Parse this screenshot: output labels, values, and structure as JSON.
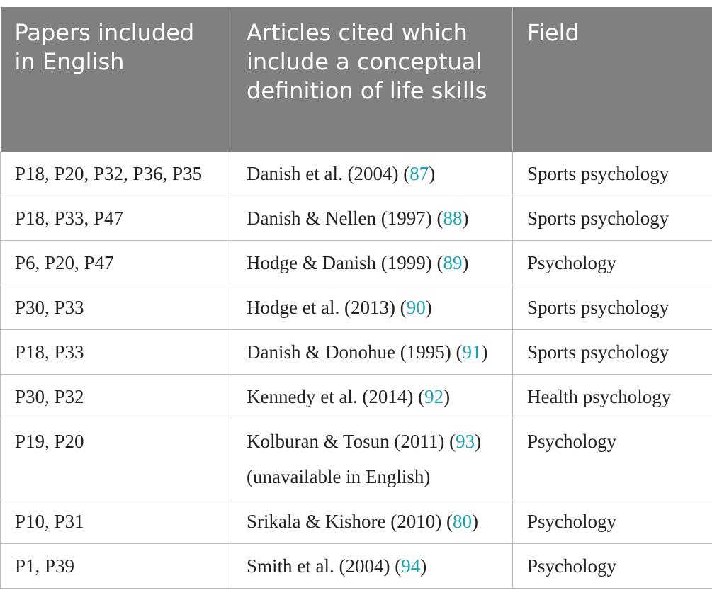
{
  "table": {
    "headers": [
      "Papers included in English",
      "Articles cited which include a conceptual definition of life skills",
      "Field"
    ],
    "rows": [
      {
        "papers": "P18, P20, P32, P36, P35",
        "article": "Danish et al. (2004) (",
        "ref": "87",
        "close": ")",
        "note": "",
        "field": "Sports psychology"
      },
      {
        "papers": "P18, P33, P47",
        "article": "Danish & Nellen (1997) (",
        "ref": "88",
        "close": ")",
        "note": "",
        "field": "Sports psychology"
      },
      {
        "papers": "P6, P20, P47",
        "article": "Hodge & Danish (1999) (",
        "ref": "89",
        "close": ")",
        "note": "",
        "field": "Psychology"
      },
      {
        "papers": "P30, P33",
        "article": "Hodge et al. (2013) (",
        "ref": "90",
        "close": ")",
        "note": "",
        "field": "Sports psychology"
      },
      {
        "papers": "P18, P33",
        "article": "Danish & Donohue (1995) (",
        "ref": "91",
        "close": ")",
        "note": "",
        "field": "Sports psychology"
      },
      {
        "papers": "P30, P32",
        "article": "Kennedy et al. (2014) (",
        "ref": "92",
        "close": ")",
        "note": "",
        "field": "Health psychology"
      },
      {
        "papers": "P19, P20",
        "article": "Kolburan & Tosun (2011) (",
        "ref": "93",
        "close": ")",
        "note": "(unavailable in English)",
        "field": "Psychology"
      },
      {
        "papers": "P10, P31",
        "article": "Srikala & Kishore (2010) (",
        "ref": "80",
        "close": ")",
        "note": "",
        "field": "Psychology"
      },
      {
        "papers": "P1, P39",
        "article": "Smith et al. (2004) (",
        "ref": "94",
        "close": ")",
        "note": "",
        "field": "Psychology"
      }
    ]
  }
}
